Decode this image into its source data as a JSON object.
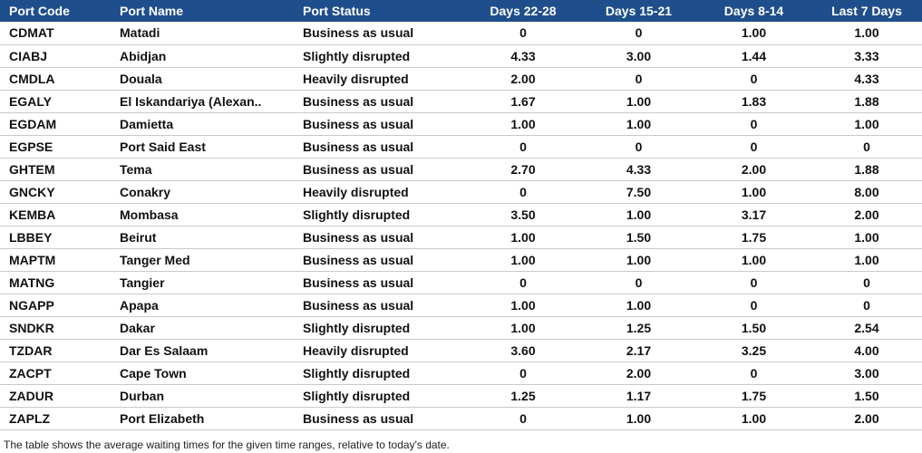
{
  "chart_data": {
    "type": "table",
    "columns": [
      "Port Code",
      "Port Name",
      "Port Status",
      "Days 22-28",
      "Days 15-21",
      "Days 8-14",
      "Last 7 Days"
    ],
    "rows": [
      [
        "CDMAT",
        "Matadi",
        "Business as usual",
        "0",
        "0",
        "1.00",
        "1.00"
      ],
      [
        "CIABJ",
        "Abidjan",
        "Slightly disrupted",
        "4.33",
        "3.00",
        "1.44",
        "3.33"
      ],
      [
        "CMDLA",
        "Douala",
        "Heavily disrupted",
        "2.00",
        "0",
        "0",
        "4.33"
      ],
      [
        "EGALY",
        "El Iskandariya (Alexan..",
        "Business as usual",
        "1.67",
        "1.00",
        "1.83",
        "1.88"
      ],
      [
        "EGDAM",
        "Damietta",
        "Business as usual",
        "1.00",
        "1.00",
        "0",
        "1.00"
      ],
      [
        "EGPSE",
        "Port Said East",
        "Business as usual",
        "0",
        "0",
        "0",
        "0"
      ],
      [
        "GHTEM",
        "Tema",
        "Business as usual",
        "2.70",
        "4.33",
        "2.00",
        "1.88"
      ],
      [
        "GNCKY",
        "Conakry",
        "Heavily disrupted",
        "0",
        "7.50",
        "1.00",
        "8.00"
      ],
      [
        "KEMBA",
        "Mombasa",
        "Slightly disrupted",
        "3.50",
        "1.00",
        "3.17",
        "2.00"
      ],
      [
        "LBBEY",
        "Beirut",
        "Business as usual",
        "1.00",
        "1.50",
        "1.75",
        "1.00"
      ],
      [
        "MAPTM",
        "Tanger Med",
        "Business as usual",
        "1.00",
        "1.00",
        "1.00",
        "1.00"
      ],
      [
        "MATNG",
        "Tangier",
        "Business as usual",
        "0",
        "0",
        "0",
        "0"
      ],
      [
        "NGAPP",
        "Apapa",
        "Business as usual",
        "1.00",
        "1.00",
        "0",
        "0"
      ],
      [
        "SNDKR",
        "Dakar",
        "Slightly disrupted",
        "1.00",
        "1.25",
        "1.50",
        "2.54"
      ],
      [
        "TZDAR",
        "Dar Es Salaam",
        "Heavily disrupted",
        "3.60",
        "2.17",
        "3.25",
        "4.00"
      ],
      [
        "ZACPT",
        "Cape Town",
        "Slightly disrupted",
        "0",
        "2.00",
        "0",
        "3.00"
      ],
      [
        "ZADUR",
        "Durban",
        "Slightly disrupted",
        "1.25",
        "1.17",
        "1.75",
        "1.50"
      ],
      [
        "ZAPLZ",
        "Port Elizabeth",
        "Business as usual",
        "0",
        "1.00",
        "1.00",
        "2.00"
      ]
    ]
  },
  "footnote": "The table shows the average waiting times for the given time ranges, relative to today's date.",
  "colors": {
    "header_bg": "#1f4e8c",
    "header_text": "#ffffff",
    "row_divider": "#c9c9c9"
  }
}
